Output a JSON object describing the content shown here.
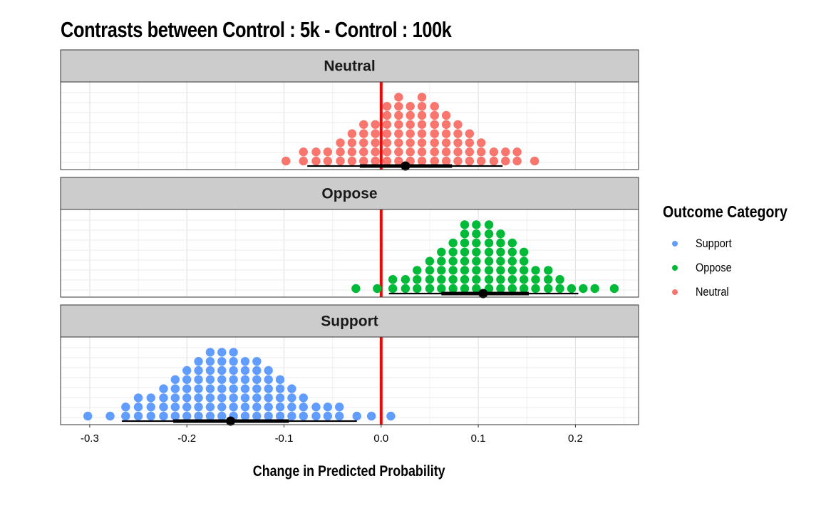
{
  "chart_data": {
    "type": "scatter",
    "subtype": "dotplot-faceted",
    "title": "Contrasts between Control : 5k - Control : 100k",
    "xlabel": "Change in Predicted Probability",
    "ylabel": "",
    "xlim": [
      -0.33,
      0.265
    ],
    "x_ticks": [
      -0.3,
      -0.2,
      -0.1,
      0.0,
      0.1,
      0.2
    ],
    "x_tick_labels": [
      "-0.3",
      "-0.2",
      "-0.1",
      "0.0",
      "0.1",
      "0.2"
    ],
    "reference_line": 0.0,
    "reference_line_color": "#ff0000",
    "grid": true,
    "legend_title": "Outcome Category",
    "legend_position": "right",
    "legend": [
      {
        "label": "Support",
        "color": "#619cff"
      },
      {
        "label": "Oppose",
        "color": "#00ba38"
      },
      {
        "label": "Neutral",
        "color": "#f8766d"
      }
    ],
    "facets": [
      {
        "name": "Neutral",
        "color": "#f8766d",
        "point_estimate": 0.025,
        "interval_66": [
          -0.022,
          0.073
        ],
        "interval_95": [
          -0.076,
          0.125
        ],
        "dot_columns": [
          {
            "x": -0.098,
            "count": 1
          },
          {
            "x": -0.08,
            "count": 2
          },
          {
            "x": -0.067,
            "count": 2
          },
          {
            "x": -0.055,
            "count": 2
          },
          {
            "x": -0.042,
            "count": 3
          },
          {
            "x": -0.03,
            "count": 4
          },
          {
            "x": -0.018,
            "count": 5
          },
          {
            "x": -0.006,
            "count": 5
          },
          {
            "x": 0.006,
            "count": 7
          },
          {
            "x": 0.018,
            "count": 8
          },
          {
            "x": 0.03,
            "count": 7
          },
          {
            "x": 0.042,
            "count": 8
          },
          {
            "x": 0.055,
            "count": 7
          },
          {
            "x": 0.067,
            "count": 6
          },
          {
            "x": 0.079,
            "count": 5
          },
          {
            "x": 0.091,
            "count": 4
          },
          {
            "x": 0.103,
            "count": 3
          },
          {
            "x": 0.116,
            "count": 2
          },
          {
            "x": 0.128,
            "count": 2
          },
          {
            "x": 0.14,
            "count": 2
          },
          {
            "x": 0.158,
            "count": 1
          }
        ]
      },
      {
        "name": "Oppose",
        "color": "#00ba38",
        "point_estimate": 0.105,
        "interval_66": [
          0.062,
          0.152
        ],
        "interval_95": [
          0.008,
          0.203
        ],
        "dot_columns": [
          {
            "x": -0.026,
            "count": 1
          },
          {
            "x": -0.004,
            "count": 1
          },
          {
            "x": 0.012,
            "count": 2
          },
          {
            "x": 0.025,
            "count": 2
          },
          {
            "x": 0.037,
            "count": 3
          },
          {
            "x": 0.05,
            "count": 4
          },
          {
            "x": 0.062,
            "count": 5
          },
          {
            "x": 0.074,
            "count": 6
          },
          {
            "x": 0.086,
            "count": 8
          },
          {
            "x": 0.098,
            "count": 8
          },
          {
            "x": 0.111,
            "count": 8
          },
          {
            "x": 0.123,
            "count": 7
          },
          {
            "x": 0.135,
            "count": 6
          },
          {
            "x": 0.147,
            "count": 5
          },
          {
            "x": 0.159,
            "count": 3
          },
          {
            "x": 0.172,
            "count": 3
          },
          {
            "x": 0.184,
            "count": 2
          },
          {
            "x": 0.196,
            "count": 1
          },
          {
            "x": 0.208,
            "count": 1
          },
          {
            "x": 0.22,
            "count": 1
          },
          {
            "x": 0.24,
            "count": 1
          }
        ]
      },
      {
        "name": "Support",
        "color": "#619cff",
        "point_estimate": -0.155,
        "interval_66": [
          -0.214,
          -0.095
        ],
        "interval_95": [
          -0.267,
          -0.025
        ],
        "dot_columns": [
          {
            "x": -0.302,
            "count": 1
          },
          {
            "x": -0.279,
            "count": 1
          },
          {
            "x": -0.263,
            "count": 2
          },
          {
            "x": -0.25,
            "count": 3
          },
          {
            "x": -0.237,
            "count": 3
          },
          {
            "x": -0.224,
            "count": 4
          },
          {
            "x": -0.212,
            "count": 5
          },
          {
            "x": -0.2,
            "count": 6
          },
          {
            "x": -0.188,
            "count": 7
          },
          {
            "x": -0.176,
            "count": 8
          },
          {
            "x": -0.164,
            "count": 8
          },
          {
            "x": -0.152,
            "count": 8
          },
          {
            "x": -0.14,
            "count": 7
          },
          {
            "x": -0.128,
            "count": 7
          },
          {
            "x": -0.116,
            "count": 6
          },
          {
            "x": -0.104,
            "count": 5
          },
          {
            "x": -0.092,
            "count": 4
          },
          {
            "x": -0.08,
            "count": 3
          },
          {
            "x": -0.067,
            "count": 2
          },
          {
            "x": -0.055,
            "count": 2
          },
          {
            "x": -0.043,
            "count": 2
          },
          {
            "x": -0.025,
            "count": 1
          },
          {
            "x": -0.01,
            "count": 1
          },
          {
            "x": 0.01,
            "count": 1
          }
        ]
      }
    ]
  }
}
